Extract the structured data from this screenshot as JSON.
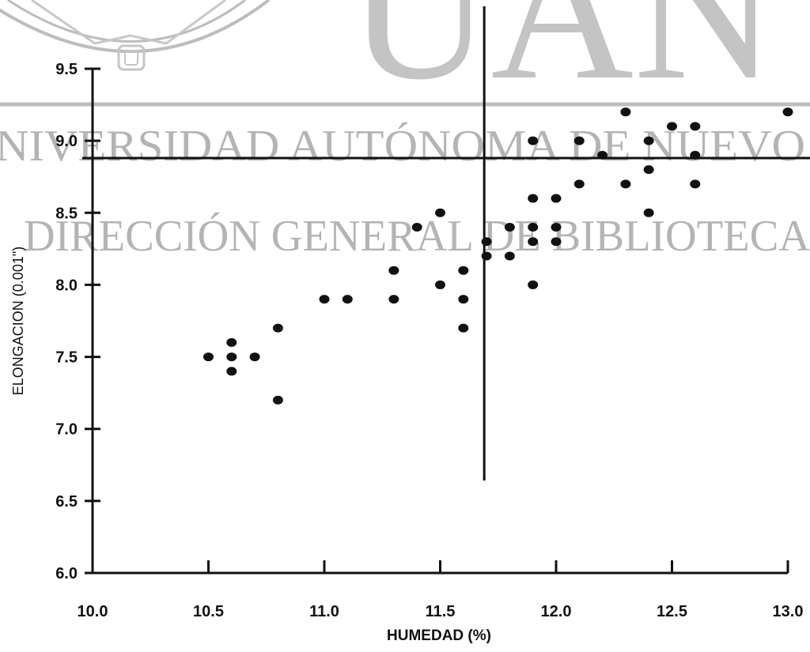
{
  "watermark": {
    "big": "UAN",
    "line1": "NIVERSIDAD AUTÓNOMA DE NUEVO",
    "line2": "DIRECCIÓN GENERAL DE BIBLIOTECA"
  },
  "chart_data": {
    "type": "scatter",
    "title": "",
    "xlabel": "HUMEDAD (%)",
    "ylabel": "ELONGACION (0.001\")",
    "xlim": [
      10.0,
      13.0
    ],
    "ylim": [
      6.0,
      9.5
    ],
    "x_ticks": [
      "10.0",
      "10.5",
      "11.0",
      "11.5",
      "12.0",
      "12.5",
      "13.0"
    ],
    "y_ticks": [
      "6.0",
      "6.5",
      "7.0",
      "7.5",
      "8.0",
      "8.5",
      "9.0",
      "9.5"
    ],
    "grid": false,
    "reference_lines": {
      "vertical_x": 11.69,
      "horizontal_y": 8.88
    },
    "points": [
      {
        "x": 10.5,
        "y": 7.5
      },
      {
        "x": 10.6,
        "y": 7.6
      },
      {
        "x": 10.6,
        "y": 7.5
      },
      {
        "x": 10.6,
        "y": 7.4
      },
      {
        "x": 10.7,
        "y": 7.5
      },
      {
        "x": 10.8,
        "y": 7.7
      },
      {
        "x": 10.8,
        "y": 7.2
      },
      {
        "x": 11.0,
        "y": 7.9
      },
      {
        "x": 11.1,
        "y": 7.9
      },
      {
        "x": 11.3,
        "y": 8.1
      },
      {
        "x": 11.3,
        "y": 7.9
      },
      {
        "x": 11.4,
        "y": 8.4
      },
      {
        "x": 11.5,
        "y": 8.5
      },
      {
        "x": 11.5,
        "y": 8.0
      },
      {
        "x": 11.6,
        "y": 8.1
      },
      {
        "x": 11.6,
        "y": 7.9
      },
      {
        "x": 11.6,
        "y": 7.7
      },
      {
        "x": 11.7,
        "y": 8.3
      },
      {
        "x": 11.7,
        "y": 8.2
      },
      {
        "x": 11.8,
        "y": 8.4
      },
      {
        "x": 11.8,
        "y": 8.2
      },
      {
        "x": 11.9,
        "y": 9.0
      },
      {
        "x": 11.9,
        "y": 8.6
      },
      {
        "x": 11.9,
        "y": 8.4
      },
      {
        "x": 11.9,
        "y": 8.3
      },
      {
        "x": 11.9,
        "y": 8.0
      },
      {
        "x": 12.0,
        "y": 8.6
      },
      {
        "x": 12.0,
        "y": 8.4
      },
      {
        "x": 12.0,
        "y": 8.3
      },
      {
        "x": 12.1,
        "y": 9.0
      },
      {
        "x": 12.1,
        "y": 8.7
      },
      {
        "x": 12.2,
        "y": 8.9
      },
      {
        "x": 12.3,
        "y": 9.2
      },
      {
        "x": 12.3,
        "y": 8.7
      },
      {
        "x": 12.4,
        "y": 9.0
      },
      {
        "x": 12.4,
        "y": 8.8
      },
      {
        "x": 12.4,
        "y": 8.5
      },
      {
        "x": 12.5,
        "y": 9.1
      },
      {
        "x": 12.6,
        "y": 9.1
      },
      {
        "x": 12.6,
        "y": 8.9
      },
      {
        "x": 12.6,
        "y": 8.7
      },
      {
        "x": 13.0,
        "y": 9.2
      }
    ]
  }
}
